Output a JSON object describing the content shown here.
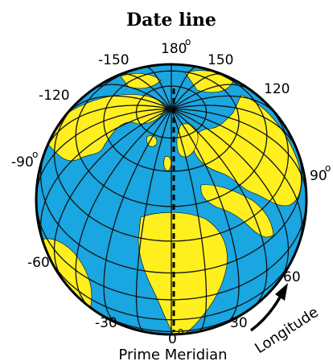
{
  "title": "Date line",
  "caption": "Prime Meridian",
  "arrow_label": "Longitude",
  "degree_mark": "o",
  "labels": {
    "top_center": "180",
    "top_left": "-150",
    "top_right": "150",
    "upper_left": "-120",
    "upper_right": "120",
    "left": "-90",
    "right": "90",
    "lower_left": "-60",
    "lower_right": "60",
    "bottom_left": "-30",
    "bottom_center": "0",
    "bottom_right": "30"
  },
  "colors": {
    "ocean": "#1aa6e0",
    "land": "#ffef1e",
    "grid": "#111111",
    "prime_meridian": "#000000"
  },
  "icons": {
    "globe": "globe-icon",
    "arrow": "curved-arrow-icon"
  }
}
